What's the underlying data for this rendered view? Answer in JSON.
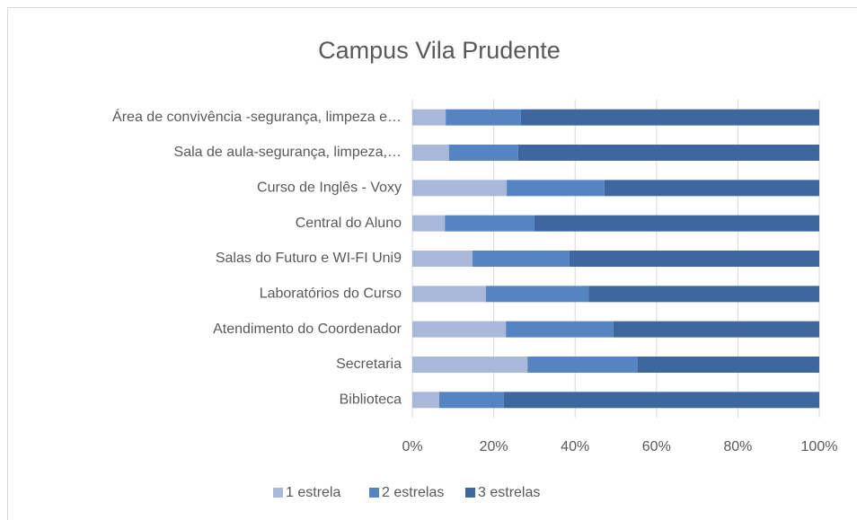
{
  "chart_data": {
    "type": "stacked_bar_horizontal",
    "title": "Campus Vila Prudente",
    "categories": [
      "Área de convivência -segurança, limpeza e…",
      "Sala de aula-segurança, limpeza,…",
      "Curso de Inglês - Voxy",
      "Central do Aluno",
      "Salas do Futuro e WI-FI Uni9",
      "Laboratórios do Curso",
      "Atendimento do Coordenador",
      "Secretaria",
      "Biblioteca"
    ],
    "series": [
      {
        "name": "1 estrela",
        "color": "#a9b8d9",
        "values": [
          8.2,
          9,
          23.2,
          8,
          14.8,
          18.1,
          23,
          28.3,
          6.6
        ]
      },
      {
        "name": "2 estrelas",
        "color": "#5584c3",
        "values": [
          18.5,
          17,
          24,
          22,
          23.8,
          25.2,
          26.4,
          27.1,
          15.9
        ]
      },
      {
        "name": "3 estrelas",
        "color": "#3e67a0",
        "values": [
          73.3,
          74,
          52.8,
          70,
          61.4,
          56.7,
          50.6,
          44.6,
          77.5
        ]
      }
    ],
    "xlim": [
      0,
      100
    ],
    "xticks": [
      {
        "value": 0,
        "label": "0%"
      },
      {
        "value": 20,
        "label": "20%"
      },
      {
        "value": 40,
        "label": "40%"
      },
      {
        "value": 60,
        "label": "60%"
      },
      {
        "value": 80,
        "label": "80%"
      },
      {
        "value": 100,
        "label": "100%"
      }
    ],
    "grid": true,
    "legend": "bottom"
  }
}
